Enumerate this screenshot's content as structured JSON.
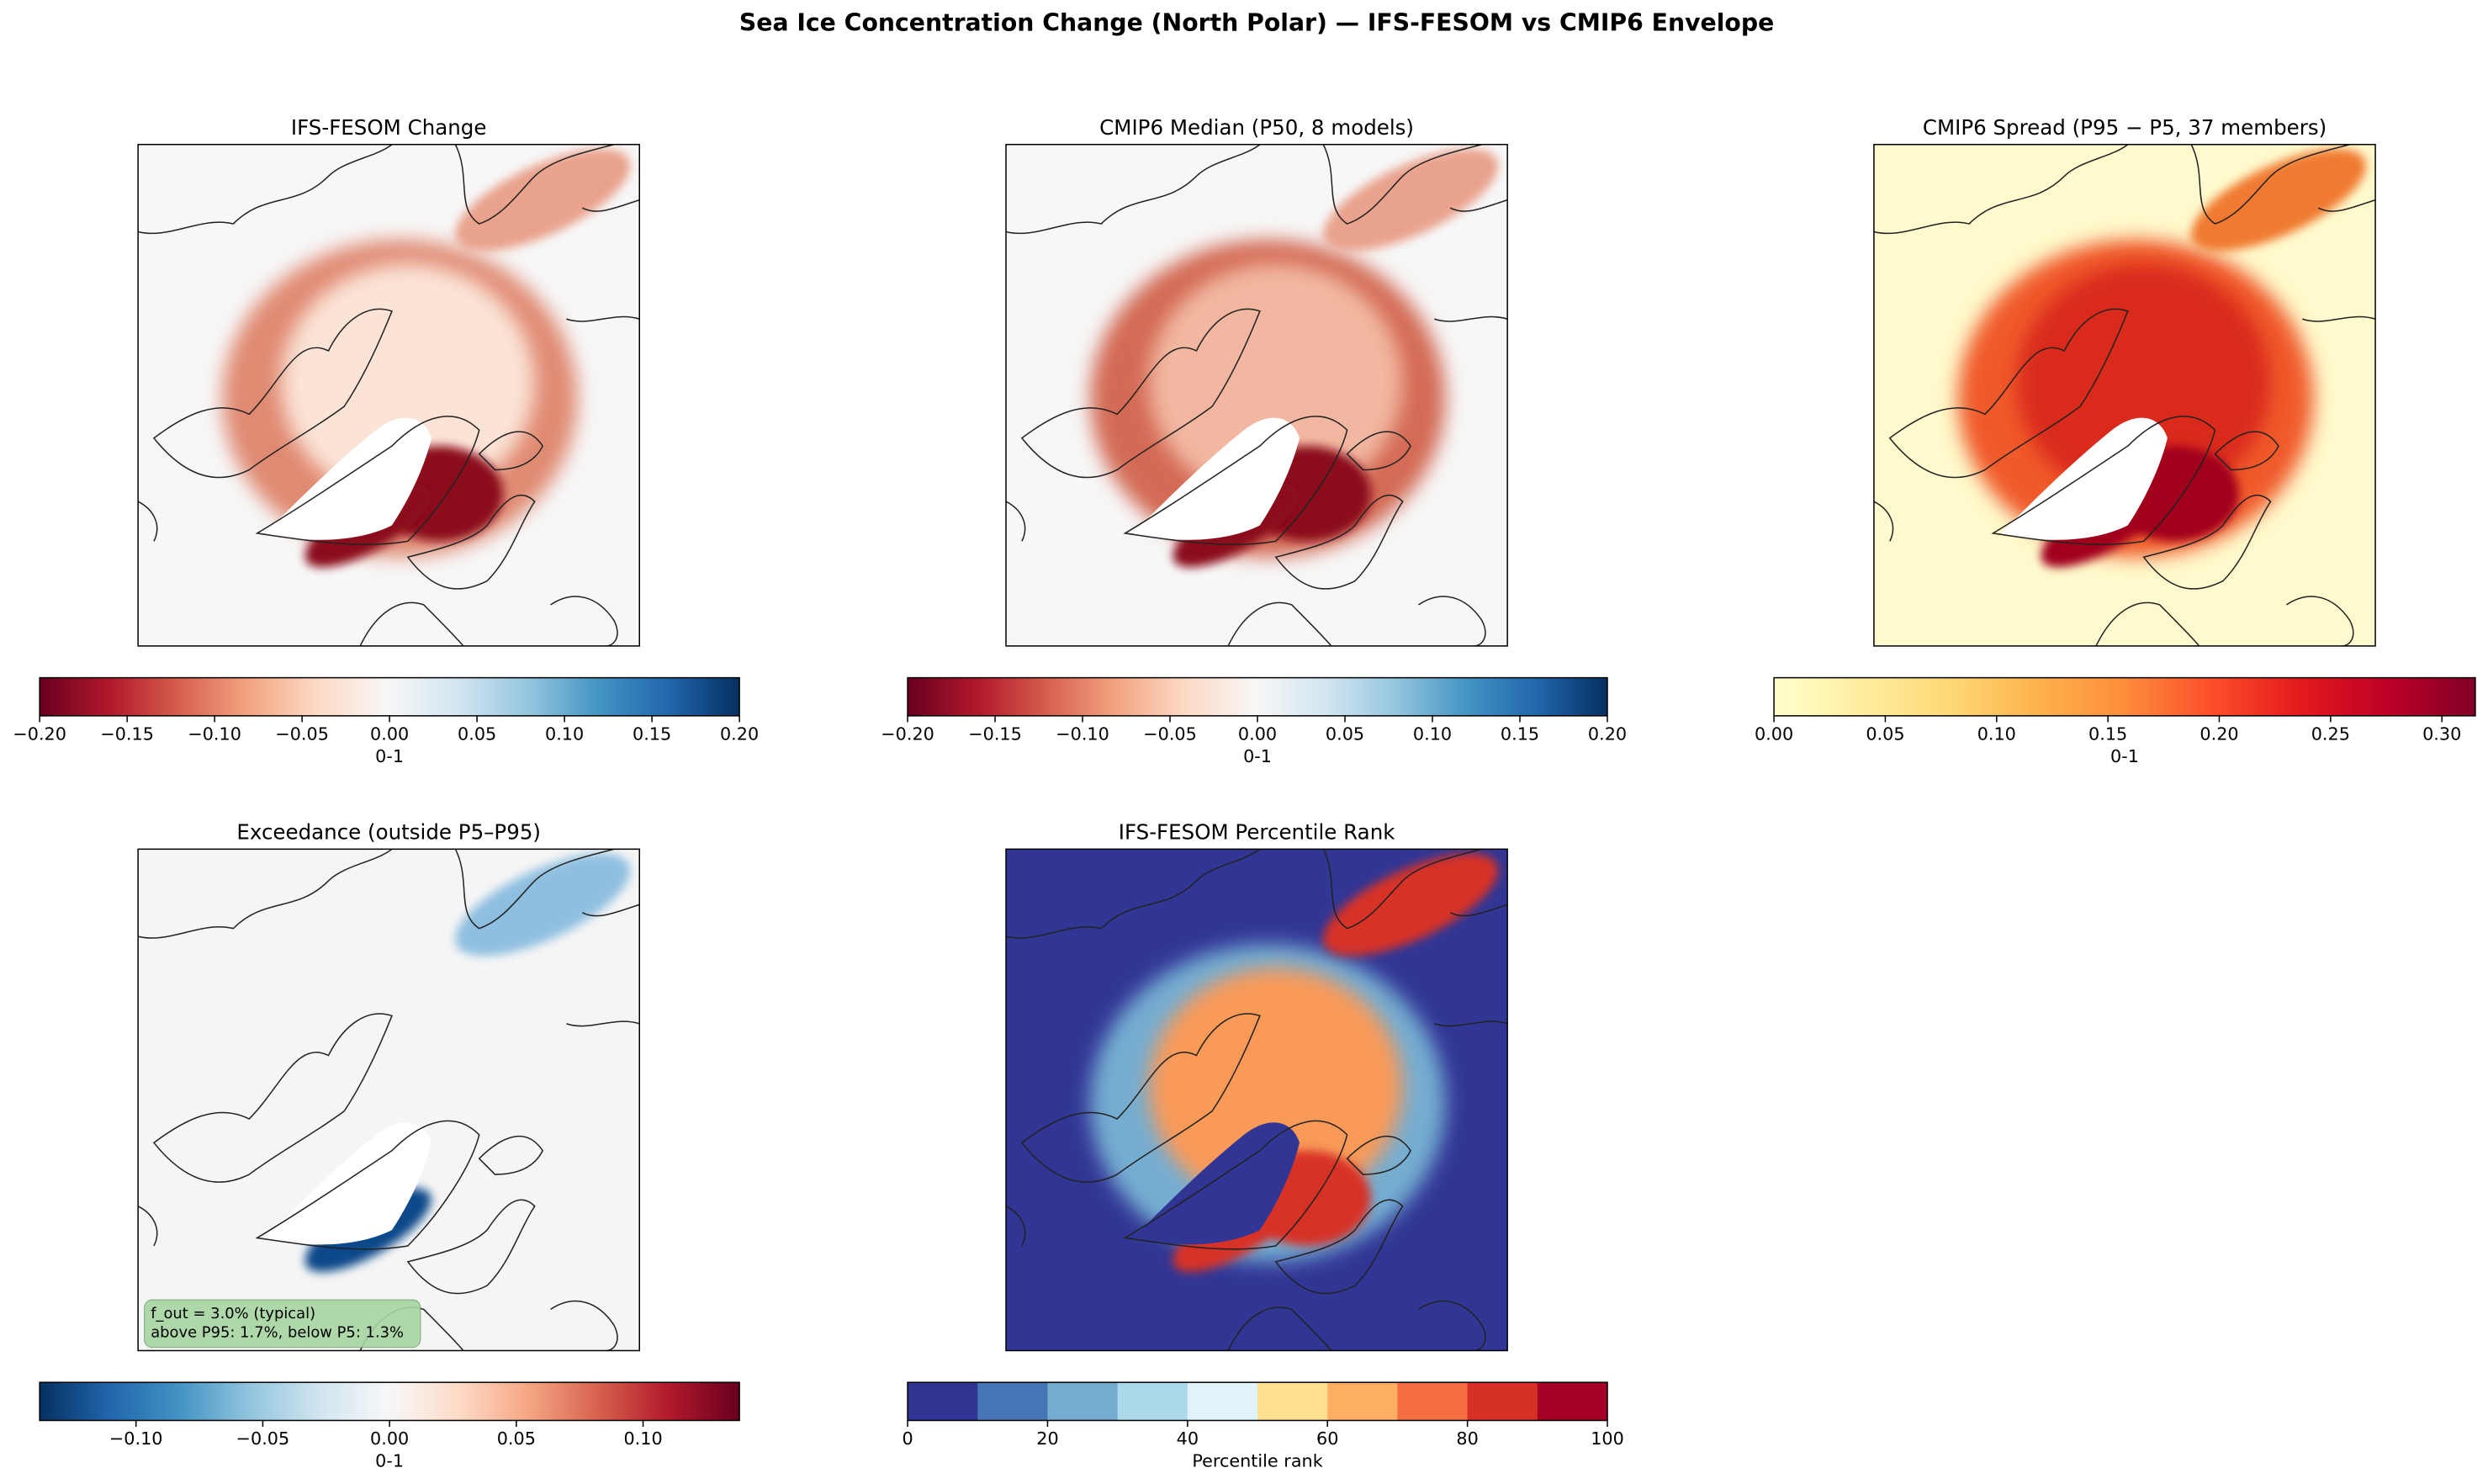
{
  "title": "Sea Ice Concentration Change (North Polar) — IFS-FESOM vs CMIP6 Envelope",
  "chart_data": [
    {
      "type": "map",
      "title": "IFS-FESOM Change",
      "style": "change",
      "colorbar": {
        "label": "0-1",
        "clim": [
          -0.2,
          0.2
        ],
        "ticks": [
          {
            "value": -0.2,
            "label": "−0.20"
          },
          {
            "value": -0.15,
            "label": "−0.15"
          },
          {
            "value": -0.1,
            "label": "−0.10"
          },
          {
            "value": -0.05,
            "label": "−0.05"
          },
          {
            "value": 0,
            "label": "0.00"
          },
          {
            "value": 0.05,
            "label": "0.05"
          },
          {
            "value": 0.1,
            "label": "0.10"
          },
          {
            "value": 0.15,
            "label": "0.15"
          },
          {
            "value": 0.2,
            "label": "0.20"
          }
        ],
        "colors": [
          "#67001f",
          "#b2182b",
          "#d6604d",
          "#f4a582",
          "#fddbc7",
          "#f7f7f7",
          "#d1e5f0",
          "#92c5de",
          "#4393c3",
          "#2166ac",
          "#053061"
        ]
      }
    },
    {
      "type": "map",
      "title": "CMIP6 Median (P50, 8 models)",
      "style": "median",
      "colorbar": {
        "label": "0-1",
        "clim": [
          -0.2,
          0.2
        ],
        "ticks": [
          {
            "value": -0.2,
            "label": "−0.20"
          },
          {
            "value": -0.15,
            "label": "−0.15"
          },
          {
            "value": -0.1,
            "label": "−0.10"
          },
          {
            "value": -0.05,
            "label": "−0.05"
          },
          {
            "value": 0,
            "label": "0.00"
          },
          {
            "value": 0.05,
            "label": "0.05"
          },
          {
            "value": 0.1,
            "label": "0.10"
          },
          {
            "value": 0.15,
            "label": "0.15"
          },
          {
            "value": 0.2,
            "label": "0.20"
          }
        ],
        "colors": [
          "#67001f",
          "#b2182b",
          "#d6604d",
          "#f4a582",
          "#fddbc7",
          "#f7f7f7",
          "#d1e5f0",
          "#92c5de",
          "#4393c3",
          "#2166ac",
          "#053061"
        ]
      }
    },
    {
      "type": "map",
      "title": "CMIP6 Spread (P95 − P5, 37 members)",
      "style": "spread",
      "colorbar": {
        "label": "0-1",
        "clim": [
          0,
          0.315
        ],
        "ticks": [
          {
            "value": 0,
            "label": "0.00"
          },
          {
            "value": 0.05,
            "label": "0.05"
          },
          {
            "value": 0.1,
            "label": "0.10"
          },
          {
            "value": 0.15,
            "label": "0.15"
          },
          {
            "value": 0.2,
            "label": "0.20"
          },
          {
            "value": 0.25,
            "label": "0.25"
          },
          {
            "value": 0.3,
            "label": "0.30"
          }
        ],
        "colors": [
          "#ffffcc",
          "#ffeda0",
          "#fed976",
          "#feb24c",
          "#fd8d3c",
          "#fc4e2a",
          "#e31a1c",
          "#bd0026",
          "#800026"
        ]
      }
    },
    {
      "type": "map",
      "title": "Exceedance (outside P5–P95)",
      "style": "exceed",
      "annotation": [
        "f_out = 3.0% (typical)",
        "above P95: 1.7%, below P5: 1.3%"
      ],
      "colorbar": {
        "label": "0-1",
        "clim": [
          -0.138,
          0.138
        ],
        "ticks": [
          {
            "value": -0.1,
            "label": "−0.10"
          },
          {
            "value": -0.05,
            "label": "−0.05"
          },
          {
            "value": 0,
            "label": "0.00"
          },
          {
            "value": 0.05,
            "label": "0.05"
          },
          {
            "value": 0.1,
            "label": "0.10"
          }
        ],
        "colors": [
          "#053061",
          "#2166ac",
          "#4393c3",
          "#92c5de",
          "#d1e5f0",
          "#f7f7f7",
          "#fddbc7",
          "#f4a582",
          "#d6604d",
          "#b2182b",
          "#67001f"
        ]
      }
    },
    {
      "type": "map",
      "title": "IFS-FESOM Percentile Rank",
      "style": "rank",
      "colorbar": {
        "label": "Percentile rank",
        "clim": [
          0,
          100
        ],
        "discrete": true,
        "ticks": [
          0,
          20,
          40,
          60,
          80,
          100
        ],
        "colors": [
          "#313695",
          "#4575b4",
          "#74add1",
          "#abd9e9",
          "#e0f3f8",
          "#fee090",
          "#fdae61",
          "#f46d43",
          "#d73027",
          "#a50026"
        ]
      }
    }
  ]
}
